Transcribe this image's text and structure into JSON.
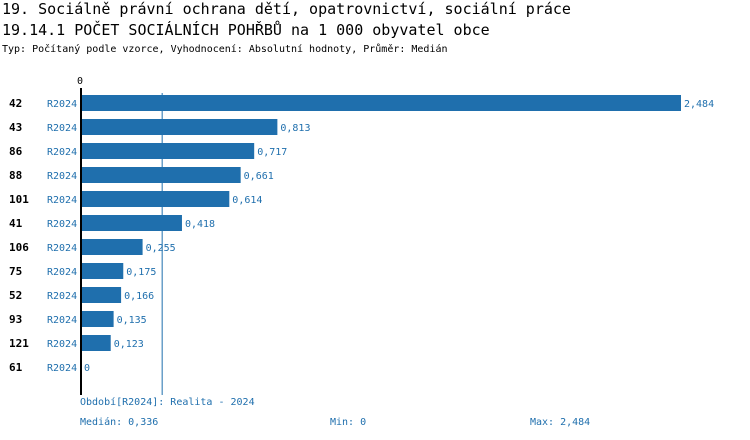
{
  "header": {
    "title_line1": "19. Sociálně právní ochrana dětí, opatrovnictví, sociální práce",
    "title_line2": "19.14.1 POČET SOCIÁLNÍCH POHŘBŮ na 1 000 obyvatel obce",
    "subtitle": "Typ: Počítaný podle vzorce, Vyhodnocení: Absolutní hodnoty, Průměr: Medián"
  },
  "chart_data": {
    "type": "bar",
    "orientation": "horizontal",
    "axis_zero_label": "0",
    "categories": [
      "42",
      "43",
      "86",
      "88",
      "101",
      "41",
      "106",
      "75",
      "52",
      "93",
      "121",
      "61"
    ],
    "series_code": "R2024",
    "values": [
      2.484,
      0.813,
      0.717,
      0.661,
      0.614,
      0.418,
      0.255,
      0.175,
      0.166,
      0.135,
      0.123,
      0
    ],
    "value_labels": [
      "2,484",
      "0,813",
      "0,717",
      "0,661",
      "0,614",
      "0,418",
      "0,255",
      "0,175",
      "0,166",
      "0,135",
      "0,123",
      "0"
    ],
    "xlim": [
      0,
      2.484
    ],
    "median": 0.336,
    "bar_color": "#1f6fad",
    "label_color": "#1f6fad"
  },
  "footer": {
    "period": "Období[R2024]: Realita - 2024",
    "median": "Medián: 0,336",
    "min": "Min: 0",
    "max": "Max: 2,484"
  }
}
